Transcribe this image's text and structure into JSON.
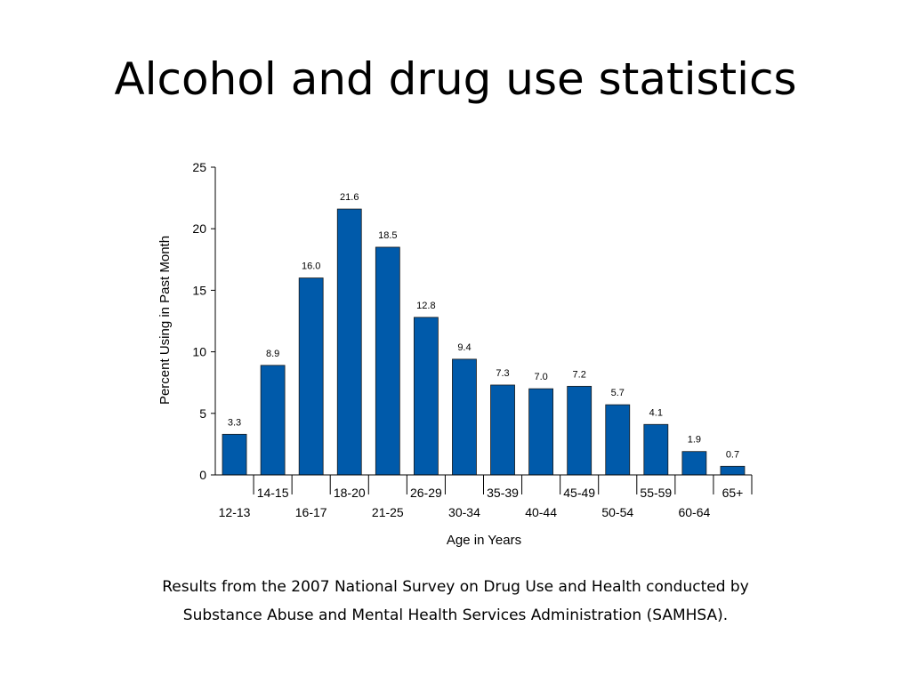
{
  "slide": {
    "title": "Alcohol and drug use statistics",
    "caption_line1": "Results from the 2007 National Survey on Drug Use and Health conducted by",
    "caption_line2": "Substance Abuse and Mental Health Services Administration (SAMHSA)."
  },
  "chart_data": {
    "type": "bar",
    "title": "",
    "xlabel": "Age in Years",
    "ylabel": "Percent Using in Past Month",
    "categories": [
      "12-13",
      "14-15",
      "16-17",
      "18-20",
      "21-25",
      "26-29",
      "30-34",
      "35-39",
      "40-44",
      "45-49",
      "50-54",
      "55-59",
      "60-64",
      "65+"
    ],
    "values": [
      3.3,
      8.9,
      16.0,
      21.6,
      18.5,
      12.8,
      9.4,
      7.3,
      7.0,
      7.2,
      5.7,
      4.1,
      1.9,
      0.7
    ],
    "value_labels": [
      "3.3",
      "8.9",
      "16.0",
      "21.6",
      "18.5",
      "12.8",
      "9.4",
      "7.3",
      "7.0",
      "7.2",
      "5.7",
      "4.1",
      "1.9",
      "0.7"
    ],
    "ylim": [
      0,
      25
    ],
    "yticks": [
      "0",
      "5",
      "10",
      "15",
      "20",
      "25"
    ],
    "grid": false,
    "legend": "none",
    "bar_color": "#005aaa"
  }
}
